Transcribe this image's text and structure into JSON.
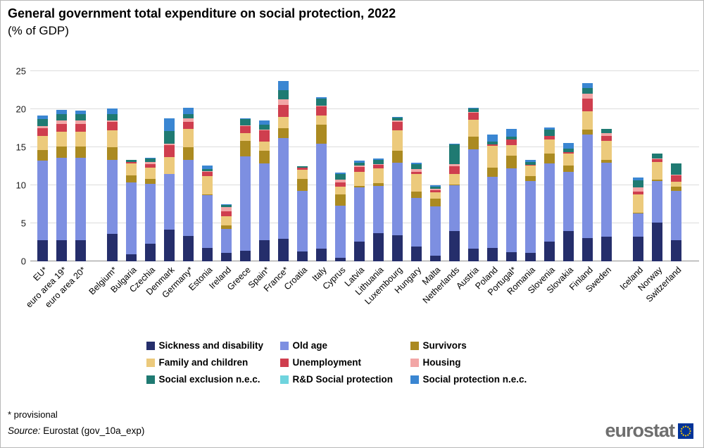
{
  "title": "General government total expenditure on social protection, 2022",
  "subtitle": "(% of GDP)",
  "footnotes": {
    "provisional": "* provisional",
    "source_prefix": "Source:",
    "source_text": " Eurostat (gov_10a_exp)"
  },
  "logo": {
    "text": "eurostat"
  },
  "chart_data": {
    "type": "bar",
    "stacked": true,
    "title": "General government total expenditure on social protection, 2022",
    "ylabel": "% of GDP",
    "ylim": [
      0,
      25
    ],
    "yticks": [
      0,
      5,
      10,
      15,
      20,
      25
    ],
    "grid": true,
    "legend_position": "bottom",
    "categories": [
      "EU*",
      "euro area 19*",
      "euro area 20*",
      "Belgium*",
      "Bulgaria",
      "Czechia",
      "Denmark",
      "Germany*",
      "Estonia",
      "Ireland",
      "Greece",
      "Spain*",
      "France*",
      "Croatia",
      "Italy",
      "Cyprus",
      "Latvia",
      "Lithuania",
      "Luxembourg",
      "Hungary",
      "Malta",
      "Netherlands",
      "Austria",
      "Poland",
      "Portugal*",
      "Romania",
      "Slovenia",
      "Slovakia",
      "Finland",
      "Sweden",
      "Iceland",
      "Norway",
      "Switzerland"
    ],
    "gap_after": [
      2,
      29
    ],
    "series": [
      {
        "name": "Sickness and disability",
        "color": "#252e6b",
        "values": [
          2.8,
          2.8,
          2.8,
          3.6,
          0.9,
          2.3,
          4.2,
          3.3,
          1.8,
          1.1,
          1.4,
          2.8,
          3.0,
          1.3,
          1.7,
          0.5,
          2.6,
          3.7,
          3.4,
          1.9,
          0.7,
          4.0,
          1.7,
          1.8,
          1.2,
          1.1,
          2.6,
          4.0,
          3.1,
          3.2,
          3.2,
          5.1,
          2.8
        ]
      },
      {
        "name": "Old age",
        "color": "#7d8fe1",
        "values": [
          10.4,
          10.8,
          10.8,
          9.7,
          9.5,
          7.9,
          7.3,
          10.0,
          6.9,
          3.2,
          12.4,
          10.1,
          13.2,
          8.0,
          13.8,
          6.8,
          7.1,
          6.2,
          9.6,
          6.4,
          6.5,
          6.0,
          13.0,
          9.3,
          11.0,
          9.5,
          10.3,
          7.8,
          13.6,
          9.8,
          3.1,
          5.5,
          6.5
        ]
      },
      {
        "name": "Survivors",
        "color": "#ab8a21",
        "values": [
          1.4,
          1.5,
          1.5,
          1.7,
          0.9,
          0.6,
          0.0,
          1.7,
          0.1,
          0.4,
          2.0,
          1.6,
          1.3,
          1.5,
          2.5,
          1.5,
          0.2,
          0.4,
          1.5,
          0.9,
          1.0,
          0.1,
          1.7,
          1.2,
          1.7,
          0.6,
          1.3,
          0.8,
          0.6,
          0.3,
          0.1,
          0.1,
          0.5
        ]
      },
      {
        "name": "Family and children",
        "color": "#ecca7c",
        "values": [
          1.9,
          1.9,
          1.9,
          2.2,
          1.6,
          1.5,
          2.2,
          2.4,
          2.4,
          1.2,
          1.1,
          1.2,
          1.5,
          1.2,
          1.2,
          1.0,
          1.9,
          1.9,
          2.7,
          2.3,
          0.9,
          1.4,
          2.2,
          2.9,
          1.4,
          1.4,
          1.8,
          1.6,
          2.4,
          2.5,
          2.4,
          2.4,
          0.7
        ]
      },
      {
        "name": "Unemployment",
        "color": "#cf3e4e",
        "values": [
          1.0,
          1.1,
          1.1,
          1.1,
          0.2,
          0.5,
          1.6,
          0.9,
          0.6,
          0.7,
          0.9,
          1.5,
          1.6,
          0.3,
          1.2,
          0.6,
          0.6,
          0.5,
          1.1,
          0.3,
          0.3,
          1.0,
          0.9,
          0.2,
          0.7,
          0.1,
          0.5,
          0.2,
          1.7,
          0.7,
          0.4,
          0.3,
          0.8
        ]
      },
      {
        "name": "Housing",
        "color": "#f2a6a6",
        "values": [
          0.3,
          0.4,
          0.4,
          0.2,
          0.0,
          0.3,
          0.2,
          0.5,
          0.1,
          0.5,
          0.1,
          0.1,
          0.7,
          0.0,
          0.1,
          0.3,
          0.2,
          0.1,
          0.2,
          0.3,
          0.1,
          0.3,
          0.1,
          0.0,
          0.0,
          0.0,
          0.0,
          0.0,
          0.6,
          0.4,
          0.5,
          0.1,
          0.1
        ]
      },
      {
        "name": "Social exclusion n.e.c.",
        "color": "#1f7a72",
        "values": [
          0.9,
          0.9,
          0.9,
          0.9,
          0.2,
          0.4,
          1.6,
          0.6,
          0.2,
          0.3,
          0.8,
          0.7,
          1.2,
          0.2,
          0.9,
          0.8,
          0.4,
          0.5,
          0.4,
          0.7,
          0.3,
          2.6,
          0.5,
          0.3,
          0.4,
          0.4,
          0.8,
          0.4,
          0.8,
          0.5,
          1.0,
          0.7,
          1.5
        ]
      },
      {
        "name": "R&D Social protection",
        "color": "#6fd4de",
        "values": [
          0.0,
          0.0,
          0.0,
          0.0,
          0.0,
          0.0,
          0.0,
          0.0,
          0.0,
          0.0,
          0.0,
          0.0,
          0.0,
          0.0,
          0.0,
          0.0,
          0.0,
          0.0,
          0.0,
          0.0,
          0.0,
          0.0,
          0.0,
          0.0,
          0.0,
          0.0,
          0.0,
          0.0,
          0.0,
          0.0,
          0.0,
          0.0,
          0.0
        ]
      },
      {
        "name": "Social protection n.e.c.",
        "color": "#3a86d2",
        "values": [
          0.5,
          0.5,
          0.4,
          0.7,
          0.0,
          0.1,
          1.7,
          0.8,
          0.5,
          0.1,
          0.1,
          0.5,
          1.2,
          0.0,
          0.2,
          0.2,
          0.2,
          0.2,
          0.1,
          0.2,
          0.2,
          0.1,
          0.1,
          1.0,
          1.0,
          0.2,
          0.3,
          0.8,
          0.6,
          0.0,
          0.3,
          0.0,
          0.0
        ]
      }
    ]
  }
}
